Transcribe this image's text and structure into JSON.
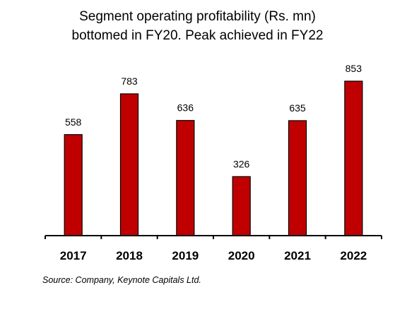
{
  "chart_data": {
    "type": "bar",
    "title": "Segment operating profitability (Rs. mn) bottomed in FY20. Peak achieved in FY22",
    "title_lines": [
      "Segment operating profitability (Rs. mn)",
      "bottomed in FY20. Peak achieved in FY22"
    ],
    "categories": [
      "2017",
      "2018",
      "2019",
      "2020",
      "2021",
      "2022"
    ],
    "values": [
      558,
      783,
      636,
      326,
      635,
      853
    ],
    "data_labels": [
      "558",
      "783",
      "636",
      "326",
      "635",
      "853"
    ],
    "xlabel": "",
    "ylabel": "",
    "ylim": [
      0,
      900
    ],
    "grid": false,
    "legend": "none",
    "bar_color": "#c00000",
    "bar_edge_color": "#000000"
  },
  "source": "Source: Company, Keynote Capitals Ltd."
}
